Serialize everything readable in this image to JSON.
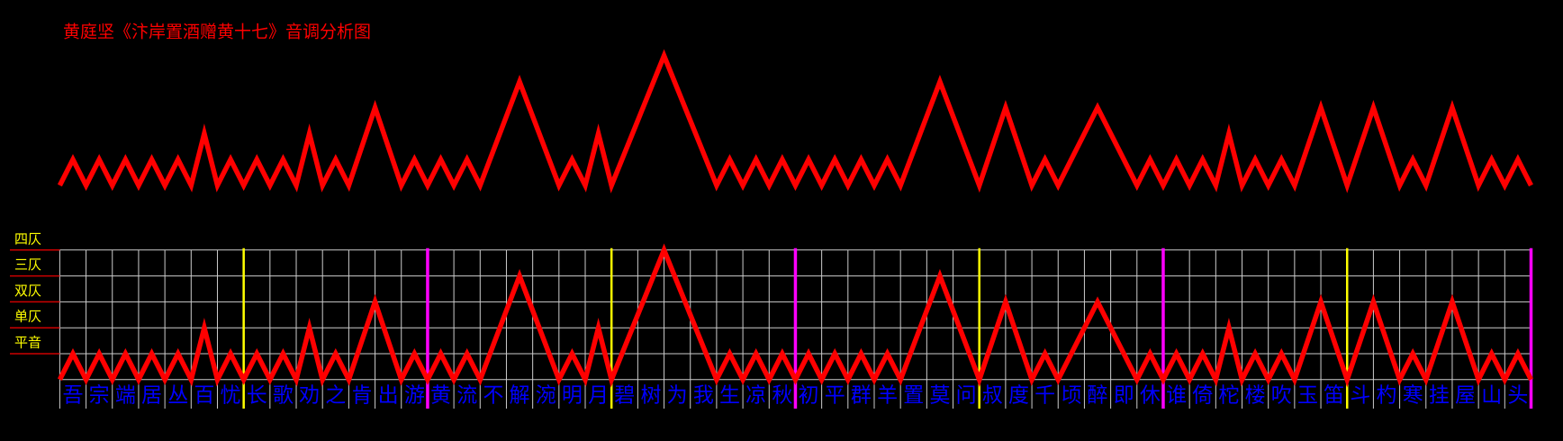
{
  "chart_data": {
    "type": "line",
    "title": "黄庭坚《汴岸置酒赠黄十七》音调分析图",
    "categories": [
      "吾",
      "宗",
      "端",
      "居",
      "丛",
      "百",
      "忧",
      "长",
      "歌",
      "劝",
      "之",
      "肯",
      "出",
      "游",
      "黄",
      "流",
      "不",
      "解",
      "涴",
      "明",
      "月",
      "碧",
      "树",
      "为",
      "我",
      "生",
      "凉",
      "秋",
      "初",
      "平",
      "群",
      "羊",
      "置",
      "莫",
      "问",
      "叔",
      "度",
      "千",
      "顷",
      "醉",
      "即",
      "休",
      "谁",
      "倚",
      "柁",
      "楼",
      "吹",
      "玉",
      "笛",
      "斗",
      "杓",
      "寒",
      "挂",
      "屋",
      "山",
      "头"
    ],
    "x": [
      0,
      0.5,
      1,
      1.5,
      2,
      2.5,
      3,
      3.5,
      4,
      4.5,
      5,
      5.5,
      6,
      6.5,
      7,
      7.5,
      8,
      8.5,
      9,
      9.5,
      10,
      10.5,
      11,
      12,
      13,
      13.5,
      14,
      14.5,
      15,
      15.5,
      16,
      17.5,
      19,
      19.5,
      20,
      20.5,
      21,
      23,
      25,
      25.5,
      26,
      26.5,
      27,
      27.5,
      28,
      28.5,
      29,
      29.5,
      30,
      30.5,
      31,
      31.5,
      32,
      33.5,
      35,
      36,
      37,
      37.5,
      38,
      39.5,
      41,
      41.5,
      42,
      42.5,
      43,
      43.5,
      44,
      44.5,
      45,
      45.5,
      46,
      46.5,
      47,
      48,
      49,
      50,
      51,
      51.5,
      52,
      53,
      54,
      54.5,
      55,
      55.5,
      56
    ],
    "values": [
      0,
      1,
      0,
      1,
      0,
      1,
      0,
      1,
      0,
      1,
      0,
      2,
      0,
      1,
      0,
      1,
      0,
      1,
      0,
      2,
      0,
      1,
      0,
      3,
      0,
      1,
      0,
      1,
      0,
      1,
      0,
      4,
      0,
      1,
      0,
      2,
      0,
      5,
      0,
      1,
      0,
      1,
      0,
      1,
      0,
      1,
      0,
      1,
      0,
      1,
      0,
      1,
      0,
      4,
      0,
      3,
      0,
      1,
      0,
      3,
      0,
      1,
      0,
      1,
      0,
      1,
      0,
      2,
      0,
      1,
      0,
      1,
      0,
      3,
      0,
      3,
      0,
      1,
      0,
      3,
      0,
      1,
      0,
      1,
      0
    ],
    "color": "#ff0000",
    "xlim": [
      0,
      56
    ],
    "ylim": [
      0,
      5
    ],
    "yticks": [
      {
        "value": 1,
        "label": "平音"
      },
      {
        "value": 2,
        "label": "单仄"
      },
      {
        "value": 3,
        "label": "双仄"
      },
      {
        "value": 4,
        "label": "三仄"
      },
      {
        "value": 5,
        "label": "四仄"
      }
    ],
    "separators": [
      {
        "x": 7,
        "color": "#ffff00"
      },
      {
        "x": 14,
        "color": "#ff00ff"
      },
      {
        "x": 21,
        "color": "#ffff00"
      },
      {
        "x": 28,
        "color": "#ff00ff"
      },
      {
        "x": 35,
        "color": "#ffff00"
      },
      {
        "x": 42,
        "color": "#ff00ff"
      },
      {
        "x": 49,
        "color": "#ffff00"
      },
      {
        "x": 56,
        "color": "#ff00ff"
      }
    ],
    "grid": true
  }
}
